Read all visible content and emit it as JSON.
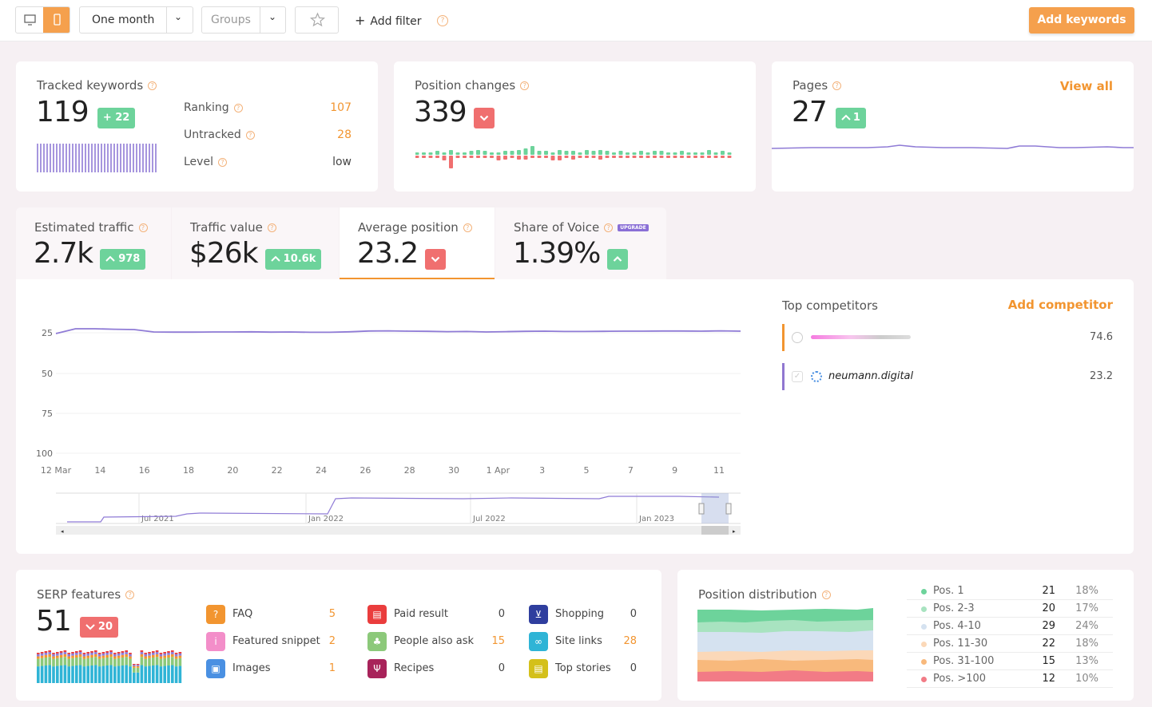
{
  "toolbar": {
    "period": "One month",
    "groups_placeholder": "Groups",
    "add_filter": "Add filter",
    "add_keywords": "Add keywords"
  },
  "tracked": {
    "title": "Tracked keywords",
    "value": "119",
    "delta": "+ 22",
    "rows": [
      {
        "label": "Ranking",
        "value": "107"
      },
      {
        "label": "Untracked",
        "value": "28"
      },
      {
        "label": "Level",
        "value": "low"
      }
    ]
  },
  "position_changes": {
    "title": "Position changes",
    "value": "339",
    "delta_icon": "chevron-down-icon"
  },
  "pages": {
    "title": "Pages",
    "value": "27",
    "delta": "1",
    "view_all": "View all"
  },
  "metrics": [
    {
      "title": "Estimated traffic",
      "value": "2.7k",
      "delta": "978",
      "direction": "up"
    },
    {
      "title": "Traffic value",
      "value": "$26k",
      "delta": "10.6k",
      "direction": "up"
    },
    {
      "title": "Average position",
      "value": "23.2",
      "delta": "",
      "direction": "down"
    },
    {
      "title": "Share of Voice",
      "value": "1.39%",
      "delta": "",
      "direction": "up",
      "tag": "UPGRADE"
    }
  ],
  "chart_data": {
    "type": "line",
    "y_ticks": [
      "25",
      "50",
      "75",
      "100"
    ],
    "x_ticks": [
      "12 Mar",
      "14",
      "16",
      "18",
      "20",
      "22",
      "24",
      "26",
      "28",
      "30",
      "1 Apr",
      "3",
      "5",
      "7",
      "9",
      "11"
    ],
    "ylim": [
      100,
      14
    ],
    "series": [
      {
        "values": [
          25.5,
          22.5,
          22.5,
          22.8,
          23.0,
          24.5,
          24.6,
          24.6,
          24.5,
          24.5,
          24.4,
          24.6,
          24.5,
          24.7,
          24.7,
          24.4,
          23.9,
          23.8,
          24.0,
          24.1,
          24.3,
          24.2,
          24.5,
          24.3,
          24.1,
          24.0,
          24.2,
          24.2,
          24.1,
          24.0,
          24.0,
          23.9,
          23.9,
          24.0,
          23.8,
          24.0
        ]
      }
    ],
    "navigator_ticks": [
      "Jul 2021",
      "Jan 2022",
      "Jul 2022",
      "Jan 2023"
    ]
  },
  "competitors": {
    "title": "Top competitors",
    "add": "Add competitor",
    "items": [
      {
        "name": "",
        "value": "74.6",
        "color": "#f29530"
      },
      {
        "name": "neumann.digital",
        "value": "23.2",
        "color": "#9077d0"
      }
    ]
  },
  "serp": {
    "title": "SERP features",
    "value": "51",
    "delta": "20",
    "features": [
      {
        "label": "FAQ",
        "value": "5",
        "icon": "question-icon",
        "color": "#f29530"
      },
      {
        "label": "Featured snippet",
        "value": "2",
        "icon": "snippet-icon",
        "color": "#f38ec9"
      },
      {
        "label": "Images",
        "value": "1",
        "icon": "image-icon",
        "color": "#4a90e2"
      },
      {
        "label": "Paid result",
        "value": "0",
        "icon": "ad-icon",
        "color": "#ea3d3d"
      },
      {
        "label": "People also ask",
        "value": "15",
        "icon": "people-icon",
        "color": "#8cc97a"
      },
      {
        "label": "Recipes",
        "value": "0",
        "icon": "recipe-icon",
        "color": "#a8235a"
      },
      {
        "label": "Shopping",
        "value": "0",
        "icon": "cart-icon",
        "color": "#2f3e9e"
      },
      {
        "label": "Site links",
        "value": "28",
        "icon": "link-icon",
        "color": "#2fb4d6"
      },
      {
        "label": "Top stories",
        "value": "0",
        "icon": "news-icon",
        "color": "#d4c01a"
      }
    ]
  },
  "distribution": {
    "title": "Position distribution",
    "rows": [
      {
        "label": "Pos. 1",
        "count": "21",
        "pct": "18%",
        "color": "#6dd39b"
      },
      {
        "label": "Pos. 2-3",
        "count": "20",
        "pct": "17%",
        "color": "#a8e3c0"
      },
      {
        "label": "Pos. 4-10",
        "count": "29",
        "pct": "24%",
        "color": "#d5e2f0"
      },
      {
        "label": "Pos. 11-30",
        "count": "22",
        "pct": "18%",
        "color": "#fbd8b8"
      },
      {
        "label": "Pos. 31-100",
        "count": "15",
        "pct": "13%",
        "color": "#f8b97c"
      },
      {
        "label": "Pos. >100",
        "count": "12",
        "pct": "10%",
        "color": "#f27b86"
      }
    ]
  }
}
